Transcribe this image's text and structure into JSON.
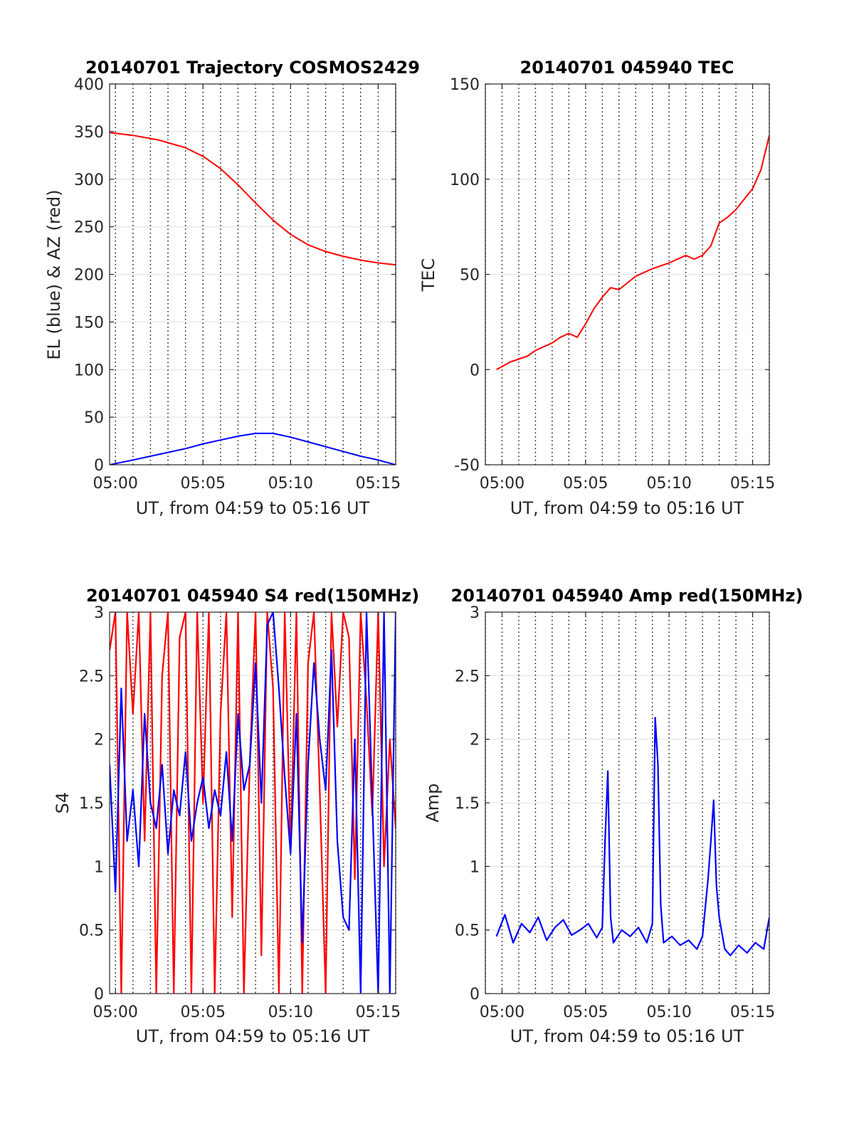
{
  "figure": {
    "background": "#ffffff"
  },
  "chart_data": [
    {
      "type": "line",
      "title": "20140701 Trajectory COSMOS2429",
      "xlabel": "UT, from 04:59 to 05:16 UT",
      "ylabel": "EL (blue) & AZ (red)",
      "xlim": [
        "04:59:40",
        "05:16:00"
      ],
      "ylim": [
        0,
        400
      ],
      "x_ticks": [
        "05:00",
        "05:05",
        "05:10",
        "05:15"
      ],
      "y_ticks": [
        "0",
        "50",
        "100",
        "150",
        "200",
        "250",
        "300",
        "350",
        "400"
      ],
      "y_tick_values": [
        0,
        50,
        100,
        150,
        200,
        250,
        300,
        350,
        400
      ],
      "grid": {
        "x_minute_dotted": true,
        "y_major": true
      },
      "series": [
        {
          "color": "#ff0000",
          "x": [
            "04:59:40",
            "05:01:00",
            "05:02:30",
            "05:04:00",
            "05:05:00",
            "05:06:00",
            "05:07:00",
            "05:08:00",
            "05:09:00",
            "05:10:00",
            "05:11:00",
            "05:12:00",
            "05:13:00",
            "05:14:00",
            "05:15:00",
            "05:16:00"
          ],
          "y": [
            349,
            346,
            341,
            333,
            324,
            311,
            294,
            275,
            257,
            242,
            231,
            224,
            219,
            215,
            212,
            210
          ]
        },
        {
          "color": "#0000ff",
          "x": [
            "04:59:40",
            "05:01:00",
            "05:02:00",
            "05:03:00",
            "05:04:00",
            "05:05:00",
            "05:06:00",
            "05:07:00",
            "05:08:00",
            "05:09:00",
            "05:10:00",
            "05:11:00",
            "05:12:00",
            "05:13:00",
            "05:14:00",
            "05:15:00",
            "05:16:00"
          ],
          "y": [
            0,
            5,
            9,
            13,
            17,
            22,
            26,
            30,
            33,
            33,
            29,
            24,
            19,
            14,
            9,
            5,
            0
          ]
        }
      ]
    },
    {
      "type": "line",
      "title": "20140701 045940 TEC",
      "xlabel": "UT, from 04:59 to 05:16 UT",
      "ylabel": "TEC",
      "xlim": [
        "04:59:00",
        "05:16:00"
      ],
      "ylim": [
        -50,
        150
      ],
      "x_ticks": [
        "05:00",
        "05:05",
        "05:10",
        "05:15"
      ],
      "y_ticks": [
        "-50",
        "0",
        "50",
        "100",
        "150"
      ],
      "y_tick_values": [
        -50,
        0,
        50,
        100,
        150
      ],
      "grid": {
        "x_minute_dotted": true,
        "y_major": true
      },
      "series": [
        {
          "color": "#ff0000",
          "x": [
            "04:59:40",
            "05:00:30",
            "05:01:30",
            "05:02:00",
            "05:02:30",
            "05:03:00",
            "05:03:30",
            "05:04:00",
            "05:04:30",
            "05:05:00",
            "05:05:30",
            "05:06:00",
            "05:06:30",
            "05:07:00",
            "05:08:00",
            "05:09:00",
            "05:10:00",
            "05:10:30",
            "05:11:00",
            "05:11:30",
            "05:12:00",
            "05:12:30",
            "05:13:00",
            "05:13:30",
            "05:14:00",
            "05:15:00",
            "05:15:30",
            "05:16:00"
          ],
          "y": [
            0,
            4,
            7,
            10,
            12,
            14,
            17,
            19,
            17,
            24,
            32,
            38,
            43,
            42,
            49,
            53,
            56,
            58,
            60,
            58,
            60,
            65,
            77,
            80,
            84,
            95,
            105,
            123
          ]
        }
      ]
    },
    {
      "type": "line",
      "title": "20140701 045940 S4 red(150MHz)",
      "xlabel": "UT, from 04:59 to 05:16 UT",
      "ylabel": "S4",
      "xlim": [
        "04:59:40",
        "05:16:00"
      ],
      "ylim": [
        0,
        3
      ],
      "x_ticks": [
        "05:00",
        "05:05",
        "05:10",
        "05:15"
      ],
      "y_ticks": [
        "0",
        "0.5",
        "1",
        "1.5",
        "2",
        "2.5",
        "3"
      ],
      "y_tick_values": [
        0,
        0.5,
        1,
        1.5,
        2,
        2.5,
        3
      ],
      "grid": {
        "x_minute_dotted": true,
        "y_major": true
      },
      "series": [
        {
          "color": "#ff0000",
          "x": [
            "04:59:40",
            "05:00:00",
            "05:00:20",
            "05:00:40",
            "05:01:00",
            "05:01:20",
            "05:01:40",
            "05:02:00",
            "05:02:20",
            "05:02:40",
            "05:03:00",
            "05:03:20",
            "05:03:40",
            "05:04:00",
            "05:04:20",
            "05:04:40",
            "05:05:00",
            "05:05:20",
            "05:05:40",
            "05:06:00",
            "05:06:20",
            "05:06:40",
            "05:07:00",
            "05:07:20",
            "05:07:40",
            "05:08:00",
            "05:08:20",
            "05:08:40",
            "05:09:00",
            "05:09:20",
            "05:09:40",
            "05:10:00",
            "05:10:20",
            "05:10:40",
            "05:11:00",
            "05:11:20",
            "05:11:40",
            "05:12:00",
            "05:12:20",
            "05:12:40",
            "05:13:00",
            "05:13:20",
            "05:13:40",
            "05:14:00",
            "05:14:20",
            "05:14:40",
            "05:15:00",
            "05:15:20",
            "05:15:40",
            "05:16:00"
          ],
          "y": [
            2.7,
            3.0,
            0.0,
            3.0,
            2.2,
            3.0,
            1.2,
            3.0,
            0.0,
            2.5,
            3.0,
            0.0,
            2.8,
            3.0,
            0.0,
            3.0,
            1.5,
            3.0,
            0.0,
            2.2,
            3.0,
            0.6,
            3.0,
            0.0,
            1.8,
            3.0,
            0.3,
            3.0,
            2.4,
            0.0,
            3.0,
            1.1,
            3.0,
            0.0,
            2.6,
            3.0,
            1.6,
            0.0,
            3.0,
            2.1,
            3.0,
            2.8,
            0.9,
            3.0,
            2.3,
            1.4,
            3.0,
            1.0,
            2.0,
            1.3
          ]
        },
        {
          "color": "#0000ff",
          "x": [
            "04:59:40",
            "05:00:00",
            "05:00:20",
            "05:00:40",
            "05:01:00",
            "05:01:20",
            "05:01:40",
            "05:02:00",
            "05:02:20",
            "05:02:40",
            "05:03:00",
            "05:03:20",
            "05:03:40",
            "05:04:00",
            "05:04:20",
            "05:04:40",
            "05:05:00",
            "05:05:20",
            "05:05:40",
            "05:06:00",
            "05:06:20",
            "05:06:40",
            "05:07:00",
            "05:07:20",
            "05:07:40",
            "05:08:00",
            "05:08:20",
            "05:08:40",
            "05:09:00",
            "05:09:20",
            "05:09:40",
            "05:10:00",
            "05:10:20",
            "05:10:40",
            "05:11:00",
            "05:11:20",
            "05:11:40",
            "05:12:00",
            "05:12:20",
            "05:12:40",
            "05:13:00",
            "05:13:20",
            "05:13:40",
            "05:14:00",
            "05:14:20",
            "05:14:40",
            "05:15:00",
            "05:15:20",
            "05:15:40",
            "05:16:00"
          ],
          "y": [
            1.8,
            0.8,
            2.4,
            1.2,
            1.6,
            1.0,
            2.2,
            1.5,
            1.3,
            1.8,
            1.1,
            1.6,
            1.4,
            1.9,
            1.2,
            1.5,
            1.7,
            1.3,
            1.6,
            1.4,
            1.9,
            1.2,
            2.2,
            1.6,
            1.8,
            2.6,
            1.5,
            2.9,
            3.0,
            2.4,
            1.7,
            1.1,
            2.2,
            0.4,
            1.8,
            2.6,
            2.0,
            1.6,
            2.7,
            1.2,
            0.6,
            0.5,
            2.0,
            0.0,
            3.0,
            1.5,
            0.0,
            3.0,
            0.0,
            3.0
          ]
        }
      ]
    },
    {
      "type": "line",
      "title": "20140701 045940 Amp red(150MHz)",
      "xlabel": "UT, from 04:59 to 05:16 UT",
      "ylabel": "Amp",
      "xlim": [
        "04:59:00",
        "05:16:00"
      ],
      "ylim": [
        0,
        3
      ],
      "x_ticks": [
        "05:00",
        "05:05",
        "05:10",
        "05:15"
      ],
      "y_ticks": [
        "0",
        "0.5",
        "1",
        "1.5",
        "2",
        "2.5",
        "3"
      ],
      "y_tick_values": [
        0,
        0.5,
        1,
        1.5,
        2,
        2.5,
        3
      ],
      "grid": {
        "x_minute_dotted": true,
        "y_major": true
      },
      "series": [
        {
          "color": "#0000ff",
          "x": [
            "04:59:40",
            "05:00:10",
            "05:00:40",
            "05:01:10",
            "05:01:40",
            "05:02:10",
            "05:02:40",
            "05:03:10",
            "05:03:40",
            "05:04:10",
            "05:04:40",
            "05:05:10",
            "05:05:40",
            "05:06:00",
            "05:06:10",
            "05:06:20",
            "05:06:30",
            "05:06:40",
            "05:07:10",
            "05:07:40",
            "05:08:10",
            "05:08:40",
            "05:09:00",
            "05:09:10",
            "05:09:20",
            "05:09:30",
            "05:09:40",
            "05:10:10",
            "05:10:40",
            "05:11:10",
            "05:11:40",
            "05:12:00",
            "05:12:20",
            "05:12:30",
            "05:12:40",
            "05:12:50",
            "05:13:00",
            "05:13:20",
            "05:13:40",
            "05:14:10",
            "05:14:40",
            "05:15:10",
            "05:15:40",
            "05:16:00"
          ],
          "y": [
            0.45,
            0.62,
            0.4,
            0.55,
            0.48,
            0.6,
            0.42,
            0.52,
            0.58,
            0.46,
            0.5,
            0.55,
            0.44,
            0.52,
            1.2,
            1.75,
            0.6,
            0.4,
            0.5,
            0.45,
            0.52,
            0.4,
            0.55,
            2.17,
            1.8,
            0.7,
            0.4,
            0.45,
            0.38,
            0.42,
            0.35,
            0.45,
            0.9,
            1.2,
            1.52,
            0.85,
            0.6,
            0.35,
            0.3,
            0.38,
            0.32,
            0.4,
            0.35,
            0.6
          ]
        }
      ]
    }
  ]
}
